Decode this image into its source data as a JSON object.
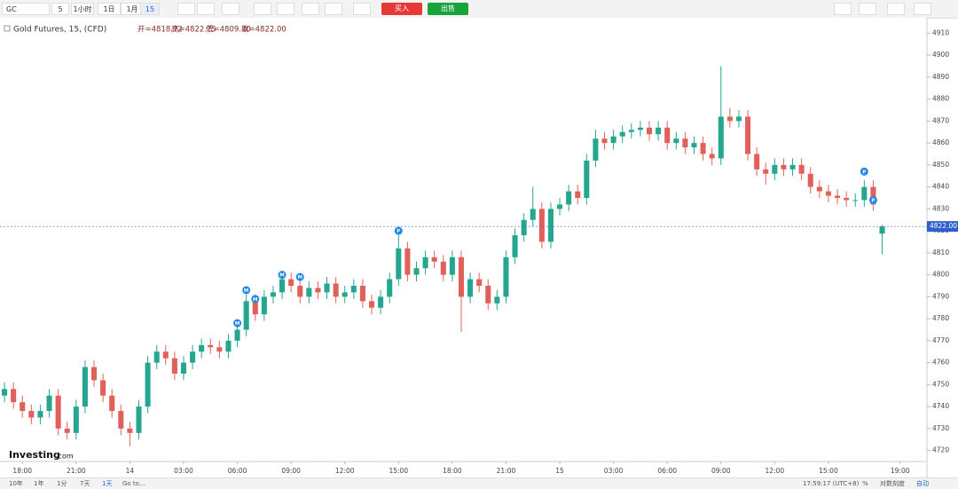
{
  "toolbar": {
    "symbol": "GC",
    "intervals": [
      "5",
      "1小时",
      "1日",
      "1月",
      "15"
    ],
    "buy": "买入",
    "sell": "出售"
  },
  "header": {
    "ohlc": [
      "开=4818.72",
      "高=4822.75",
      "低=4809.30",
      "收=4822.00"
    ]
  },
  "logo": {
    "name": "Investing",
    "suffix": ".com"
  },
  "bottom_bar": {
    "ranges": [
      "10年",
      "1年",
      "1分",
      "7天",
      "1天"
    ],
    "goto": "Go to...",
    "clock": "17:59:17 (UTC+8)",
    "percent": "%",
    "log": "对数刻度",
    "auto": "自动"
  },
  "chart_data": {
    "type": "candlestick",
    "title": "Gold Futures, 15, (CFD)",
    "up_color": "#26a68f",
    "down_color": "#e0605a",
    "open": [
      4745,
      4748,
      4742,
      4738,
      4735,
      4738,
      4745,
      4730,
      4728,
      4740,
      4758,
      4752,
      4745,
      4738,
      4730,
      4728,
      4740,
      4760,
      4765,
      4762,
      4755,
      4760,
      4765,
      4768,
      4767,
      4765,
      4770,
      4775,
      4788,
      4782,
      4790,
      4792,
      4798,
      4795,
      4790,
      4794,
      4792,
      4796,
      4790,
      4792,
      4795,
      4788,
      4785,
      4790,
      4798,
      4812,
      4800,
      4803,
      4808,
      4806,
      4800,
      4808,
      4790,
      4798,
      4795,
      4787,
      4790,
      4808,
      4818,
      4825,
      4830,
      4815,
      4830,
      4832,
      4838,
      4835,
      4852,
      4862,
      4860,
      4863,
      4865,
      4866,
      4867,
      4864,
      4867,
      4860,
      4862,
      4858,
      4860,
      4855,
      4853,
      4872,
      4870,
      4872,
      4855,
      4848,
      4846,
      4850,
      4848,
      4850,
      4846,
      4840,
      4838,
      4836,
      4835,
      4834,
      4834,
      4840,
      4818.72
    ],
    "high": [
      4751,
      4751,
      4745,
      4741,
      4741,
      4748,
      4748,
      4733,
      4743,
      4761,
      4761,
      4755,
      4748,
      4741,
      4733,
      4743,
      4763,
      4768,
      4768,
      4765,
      4763,
      4768,
      4771,
      4771,
      4770,
      4773,
      4778,
      4791,
      4791,
      4793,
      4795,
      4801,
      4801,
      4798,
      4797,
      4797,
      4799,
      4799,
      4795,
      4798,
      4798,
      4791,
      4793,
      4801,
      4818,
      4815,
      4806,
      4811,
      4811,
      4809,
      4811,
      4811,
      4801,
      4801,
      4798,
      4793,
      4811,
      4821,
      4828,
      4840,
      4833,
      4833,
      4835,
      4841,
      4841,
      4855,
      4866,
      4865,
      4866,
      4868,
      4869,
      4870,
      4870,
      4870,
      4870,
      4865,
      4865,
      4863,
      4863,
      4858,
      4895,
      4876,
      4875,
      4875,
      4858,
      4851,
      4853,
      4853,
      4853,
      4853,
      4849,
      4843,
      4841,
      4839,
      4838,
      4837,
      4843,
      4843,
      4822.75
    ],
    "low": [
      4742,
      4739,
      4735,
      4732,
      4732,
      4735,
      4727,
      4725,
      4725,
      4737,
      4749,
      4742,
      4735,
      4727,
      4722,
      4725,
      4737,
      4757,
      4759,
      4752,
      4752,
      4757,
      4762,
      4764,
      4762,
      4762,
      4767,
      4772,
      4779,
      4779,
      4787,
      4789,
      4792,
      4787,
      4787,
      4789,
      4789,
      4787,
      4787,
      4789,
      4785,
      4782,
      4782,
      4787,
      4795,
      4797,
      4797,
      4800,
      4803,
      4797,
      4797,
      4774,
      4787,
      4792,
      4784,
      4784,
      4787,
      4805,
      4815,
      4822,
      4812,
      4812,
      4827,
      4829,
      4832,
      4832,
      4849,
      4857,
      4857,
      4860,
      4862,
      4863,
      4861,
      4861,
      4857,
      4857,
      4855,
      4855,
      4852,
      4850,
      4850,
      4867,
      4867,
      4852,
      4845,
      4841,
      4843,
      4845,
      4845,
      4843,
      4837,
      4835,
      4833,
      4832,
      4831,
      4831,
      4831,
      4829,
      4809.3
    ],
    "close": [
      4748,
      4742,
      4738,
      4735,
      4738,
      4745,
      4730,
      4728,
      4740,
      4758,
      4752,
      4745,
      4738,
      4730,
      4728,
      4740,
      4760,
      4765,
      4762,
      4755,
      4760,
      4765,
      4768,
      4767,
      4765,
      4770,
      4775,
      4788,
      4782,
      4790,
      4792,
      4798,
      4795,
      4790,
      4794,
      4792,
      4796,
      4790,
      4792,
      4795,
      4788,
      4785,
      4790,
      4798,
      4812,
      4800,
      4803,
      4808,
      4806,
      4800,
      4808,
      4790,
      4798,
      4795,
      4787,
      4790,
      4808,
      4818,
      4825,
      4830,
      4815,
      4830,
      4832,
      4838,
      4835,
      4852,
      4862,
      4860,
      4863,
      4865,
      4866,
      4867,
      4864,
      4867,
      4860,
      4862,
      4858,
      4860,
      4855,
      4853,
      4872,
      4870,
      4872,
      4855,
      4848,
      4846,
      4850,
      4848,
      4850,
      4846,
      4840,
      4838,
      4836,
      4835,
      4834,
      4834,
      4840,
      4832,
      4822
    ],
    "last_price_label": "4822.00",
    "markers": [
      {
        "x": 26,
        "y": 4778,
        "label": "M"
      },
      {
        "x": 27,
        "y": 4793,
        "label": "M"
      },
      {
        "x": 28,
        "y": 4789,
        "label": "M"
      },
      {
        "x": 31,
        "y": 4800,
        "label": "M"
      },
      {
        "x": 33,
        "y": 4799,
        "label": "M"
      },
      {
        "x": 44,
        "y": 4820,
        "label": "P"
      },
      {
        "x": 96,
        "y": 4847,
        "label": "P"
      },
      {
        "x": 97,
        "y": 4834,
        "label": "P"
      }
    ],
    "xlim": [
      -0.5,
      103
    ],
    "xticks": [
      {
        "value": 2,
        "label": "18:00"
      },
      {
        "value": 8,
        "label": "21:00"
      },
      14,
      {
        "value": 20,
        "label": "03:00"
      },
      {
        "value": 26,
        "label": "06:00"
      },
      {
        "value": 32,
        "label": "09:00"
      },
      {
        "value": 38,
        "label": "12:00"
      },
      {
        "value": 44,
        "label": "15:00"
      },
      {
        "value": 50,
        "label": "18:00"
      },
      {
        "value": 56,
        "label": "21:00"
      },
      {
        "value": 62,
        "label": "15"
      },
      {
        "value": 68,
        "label": "03:00"
      },
      {
        "value": 74,
        "label": "06:00"
      },
      {
        "value": 80,
        "label": "09:00"
      },
      {
        "value": 86,
        "label": "12:00"
      },
      {
        "value": 92,
        "label": "15:00"
      },
      {
        "value": 100,
        "label": "19:00"
      }
    ],
    "ylim": [
      4715,
      4915
    ],
    "yticks": [
      4720,
      4730,
      4740,
      4750,
      4760,
      4770,
      4780,
      4790,
      4800,
      4810,
      4820,
      4830,
      4840,
      4850,
      4860,
      4870,
      4880,
      4890,
      4900,
      4910
    ],
    "grid": false
  }
}
